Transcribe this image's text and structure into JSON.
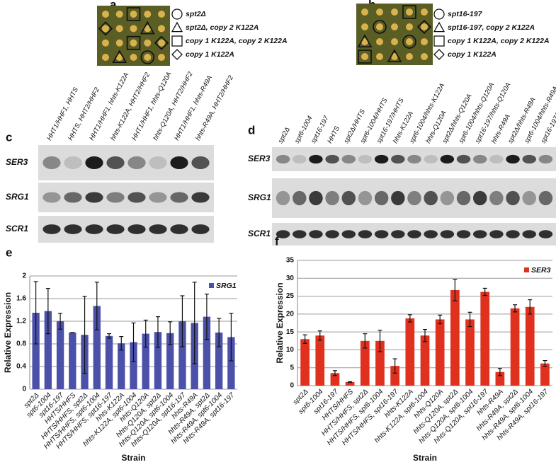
{
  "panel_a": {
    "label": "a",
    "legend": [
      "spt2Δ",
      "spt2Δ, copy 2 K122A",
      "copy 1 K122A, copy 2 K122A",
      "copy 1 K122A"
    ]
  },
  "panel_b": {
    "label": "b",
    "legend": [
      "spt16-197",
      "spt16-197, copy 2 K122A",
      "copy 1 K122A, copy 2 K122A",
      "copy 1 K122A"
    ]
  },
  "panel_c": {
    "label": "c",
    "lanes": [
      "HHT1/HHF1, HHTS",
      "HHTS, HHT2/HHF2",
      "HHT1/HHF1, hhts-K122A",
      "hhts-K122A, HHT2/HHF2",
      "HHT1/HHF1, hhts-Q120A",
      "hhts-Q120A, HHT2/HHF2",
      "HHT1/HHF1, hhts-R49A",
      "hhts-R49A, HHT2/HHF2"
    ],
    "rows": [
      "SER3",
      "SRG1",
      "SCR1"
    ]
  },
  "panel_d": {
    "label": "d",
    "lanes": [
      "spt2Δ",
      "spt6-1004",
      "spt16-197",
      "HHTS",
      "spt2Δ/HHTS",
      "spt6-1004/HHTS",
      "spt16-197/HHTS",
      "hhts-K122A",
      "spt6-1004/hhts-K122A",
      "hhts-Q120A",
      "spt2Δ/hhts-Q120A",
      "spt6-1004/hhts-Q120A",
      "spt16-197/hhts-Q120A",
      "hhts-R49A",
      "spt2Δ/hhts-R49A",
      "spt6-1004/hhts-R49A",
      "spt16-197/hhts-R49A"
    ],
    "rows": [
      "SER3",
      "SRG1",
      "SCR1"
    ]
  },
  "chart_data": [
    {
      "type": "bar",
      "panel_label": "e",
      "ylabel": "Relative Expression",
      "xlabel": "Strain",
      "categories": [
        "spt2Δ",
        "spt6-1004",
        "spt16-197",
        "HHTS/HHFS",
        "HHTS/HHFS, spt2Δ",
        "HHTS/HHFS, spt6-1004",
        "HHTS/HHFS, spt16-197",
        "hhts-K122A",
        "hhts-K122A, spt6-1004",
        "hhts-Q120A",
        "hhts-Q120A, spt2Δ",
        "hhts-Q120A, spt6-1004",
        "hhts-Q120A, spt16-197",
        "hhts-R49A",
        "hhts-R49A, spt2Δ",
        "hhts-R49A, spt6-1004",
        "hhts-R49A, spt16-197"
      ],
      "series": [
        {
          "name": "SRG1",
          "color": "#4b50a8",
          "values": [
            1.35,
            1.38,
            1.2,
            1.0,
            0.96,
            1.47,
            0.94,
            0.81,
            0.83,
            0.98,
            1.01,
            0.99,
            1.2,
            1.17,
            1.28,
            1.0,
            0.92
          ],
          "errors": [
            0.55,
            0.4,
            0.14,
            0,
            0.68,
            0.42,
            0.04,
            0.12,
            0.34,
            0.24,
            0.27,
            0.2,
            0.45,
            0.72,
            0.4,
            0.25,
            0.42
          ]
        }
      ],
      "ylim": [
        0,
        2
      ],
      "yticks": [
        0,
        0.4,
        0.8,
        1.2,
        1.6,
        2
      ],
      "grid": true,
      "legend": "top-right"
    },
    {
      "type": "bar",
      "panel_label": "f",
      "ylabel": "Relative Expression",
      "xlabel": "Strain",
      "categories": [
        "spt2Δ",
        "spt6-1004",
        "spt16-197",
        "HHTS/HHFS",
        "HHTS/HHFS, spt2Δ",
        "HHTS/HHFS, spt6-1004",
        "HHTS/HHFS, spt16-197",
        "hhts-K122A",
        "hhts-K122A, spt6-1004",
        "hhts-Q120A",
        "hhts-Q120A, spt2Δ",
        "hhts-Q120A, spt6-1004",
        "hhts-Q120A, spt16-197",
        "hhts-R49A",
        "hhts-R49A, spt2Δ",
        "hhts-R49A, spt6-1004",
        "hhts-R49A, spt16-197"
      ],
      "series": [
        {
          "name": "SER3",
          "color": "#e0301e",
          "values": [
            13,
            14,
            3.5,
            1,
            12.5,
            12.5,
            5.5,
            18.8,
            14,
            18.5,
            26.7,
            18.5,
            26.2,
            3.8,
            21.6,
            22,
            6.2
          ],
          "errors": [
            1.2,
            1.3,
            0.7,
            0.1,
            2,
            3,
            2,
            1,
            1.7,
            1.2,
            3,
            2,
            1,
            1,
            1,
            2,
            0.8
          ]
        }
      ],
      "ylim": [
        0,
        35
      ],
      "yticks": [
        0,
        5,
        10,
        15,
        20,
        25,
        30,
        35
      ],
      "grid": true,
      "legend": "top-right"
    }
  ]
}
